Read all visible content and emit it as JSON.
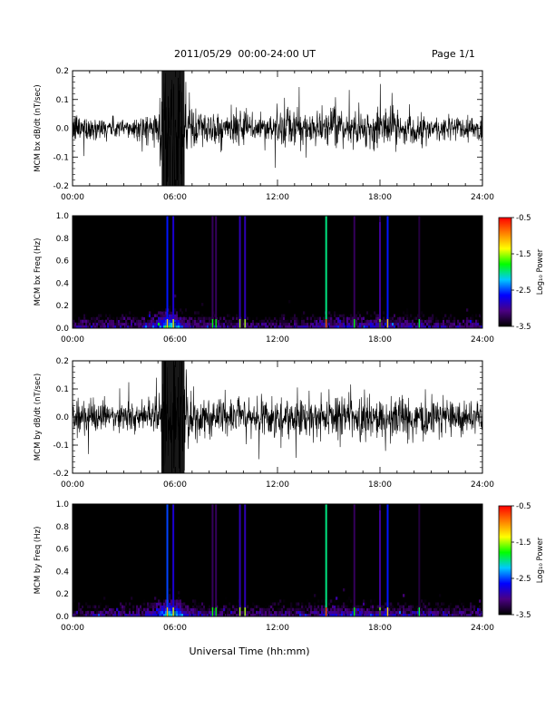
{
  "header": {
    "title": "2011/05/29  00:00-24:00 UT",
    "page": "Page 1/1"
  },
  "xlabel": "Universal Time (hh:mm)",
  "colorbar": {
    "ticks": [
      "-0.5",
      "-1.5",
      "-2.5",
      "-3.5"
    ],
    "label": "Log₁₀ Power",
    "range": [
      -3.5,
      -0.5
    ],
    "colormap": [
      "#000000",
      "#4b0082",
      "#0000ff",
      "#00c8ff",
      "#00ff00",
      "#ffff00",
      "#ff8000",
      "#ff0000"
    ]
  },
  "chart_data": [
    {
      "type": "line",
      "id": "bx-ts",
      "ylabel": "MCM bx dB/dt (nT/sec)",
      "xlim": [
        0,
        24
      ],
      "ylim": [
        -0.2,
        0.2
      ],
      "xticks": [
        "00:00",
        "06:00",
        "12:00",
        "18:00",
        "24:00"
      ],
      "yticks": [
        "-0.2",
        "-0.1",
        "0.0",
        "0.1",
        "0.2"
      ],
      "envelope": {
        "hours": [
          0,
          1,
          2,
          3,
          4,
          5,
          5.3,
          5.8,
          6.3,
          6.8,
          7.5,
          8.5,
          9.5,
          10.5,
          11.5,
          12.5,
          13.5,
          14.5,
          15.5,
          16.5,
          17.5,
          18.5,
          19.5,
          20.5,
          21.5,
          22.5,
          24
        ],
        "amplitude": [
          0.06,
          0.05,
          0.04,
          0.04,
          0.05,
          0.06,
          0.25,
          0.25,
          0.25,
          0.12,
          0.07,
          0.06,
          0.06,
          0.06,
          0.06,
          0.08,
          0.07,
          0.06,
          0.07,
          0.06,
          0.07,
          0.08,
          0.06,
          0.05,
          0.05,
          0.05,
          0.05
        ]
      }
    },
    {
      "type": "heatmap",
      "id": "bx-spec",
      "ylabel": "MCM bx Freq (Hz)",
      "xlim": [
        0,
        24
      ],
      "ylim": [
        0,
        1.0
      ],
      "xticks": [
        "00:00",
        "06:00",
        "12:00",
        "18:00",
        "24:00"
      ],
      "yticks": [
        "0.0",
        "0.2",
        "0.4",
        "0.6",
        "0.8",
        "1.0"
      ],
      "value_range": [
        -3.5,
        -0.5
      ],
      "vertical_lines": [
        {
          "hour": 5.55,
          "log_power": -2.6
        },
        {
          "hour": 5.9,
          "log_power": -2.8
        },
        {
          "hour": 8.2,
          "log_power": -3.2
        },
        {
          "hour": 8.4,
          "log_power": -3.2
        },
        {
          "hour": 9.8,
          "log_power": -2.9
        },
        {
          "hour": 10.1,
          "log_power": -2.9
        },
        {
          "hour": 14.85,
          "log_power": -2.0
        },
        {
          "hour": 16.5,
          "log_power": -3.2
        },
        {
          "hour": 18.0,
          "log_power": -3.0
        },
        {
          "hour": 18.45,
          "log_power": -2.6
        },
        {
          "hour": 20.3,
          "log_power": -3.3
        }
      ]
    },
    {
      "type": "line",
      "id": "by-ts",
      "ylabel": "MCM by dB/dt (nT/sec)",
      "xlim": [
        0,
        24
      ],
      "ylim": [
        -0.2,
        0.2
      ],
      "xticks": [
        "00:00",
        "06:00",
        "12:00",
        "18:00",
        "24:00"
      ],
      "yticks": [
        "-0.2",
        "-0.1",
        "0.0",
        "0.1",
        "0.2"
      ],
      "envelope": {
        "hours": [
          0,
          1,
          2,
          3,
          4,
          5,
          5.3,
          5.8,
          6.3,
          6.8,
          7.5,
          8.5,
          9.5,
          10.5,
          11.5,
          12.5,
          13.5,
          14.5,
          15.5,
          16.5,
          17.5,
          18.5,
          19.5,
          20.5,
          21.5,
          22.5,
          24
        ],
        "amplitude": [
          0.07,
          0.06,
          0.05,
          0.05,
          0.06,
          0.07,
          0.25,
          0.25,
          0.25,
          0.14,
          0.08,
          0.07,
          0.08,
          0.07,
          0.08,
          0.09,
          0.08,
          0.07,
          0.08,
          0.08,
          0.08,
          0.09,
          0.08,
          0.07,
          0.07,
          0.07,
          0.07
        ]
      }
    },
    {
      "type": "heatmap",
      "id": "by-spec",
      "ylabel": "MCM by Freq (Hz)",
      "xlim": [
        0,
        24
      ],
      "ylim": [
        0,
        1.0
      ],
      "xticks": [
        "00:00",
        "06:00",
        "12:00",
        "18:00",
        "24:00"
      ],
      "yticks": [
        "0.0",
        "0.2",
        "0.4",
        "0.6",
        "0.8",
        "1.0"
      ],
      "value_range": [
        -3.5,
        -0.5
      ],
      "vertical_lines": [
        {
          "hour": 5.55,
          "log_power": -2.5
        },
        {
          "hour": 5.9,
          "log_power": -2.8
        },
        {
          "hour": 8.2,
          "log_power": -3.2
        },
        {
          "hour": 8.4,
          "log_power": -3.2
        },
        {
          "hour": 9.8,
          "log_power": -2.9
        },
        {
          "hour": 10.1,
          "log_power": -2.9
        },
        {
          "hour": 14.85,
          "log_power": -2.0
        },
        {
          "hour": 16.5,
          "log_power": -3.2
        },
        {
          "hour": 18.0,
          "log_power": -3.0
        },
        {
          "hour": 18.45,
          "log_power": -2.6
        },
        {
          "hour": 20.3,
          "log_power": -3.3
        }
      ]
    }
  ]
}
